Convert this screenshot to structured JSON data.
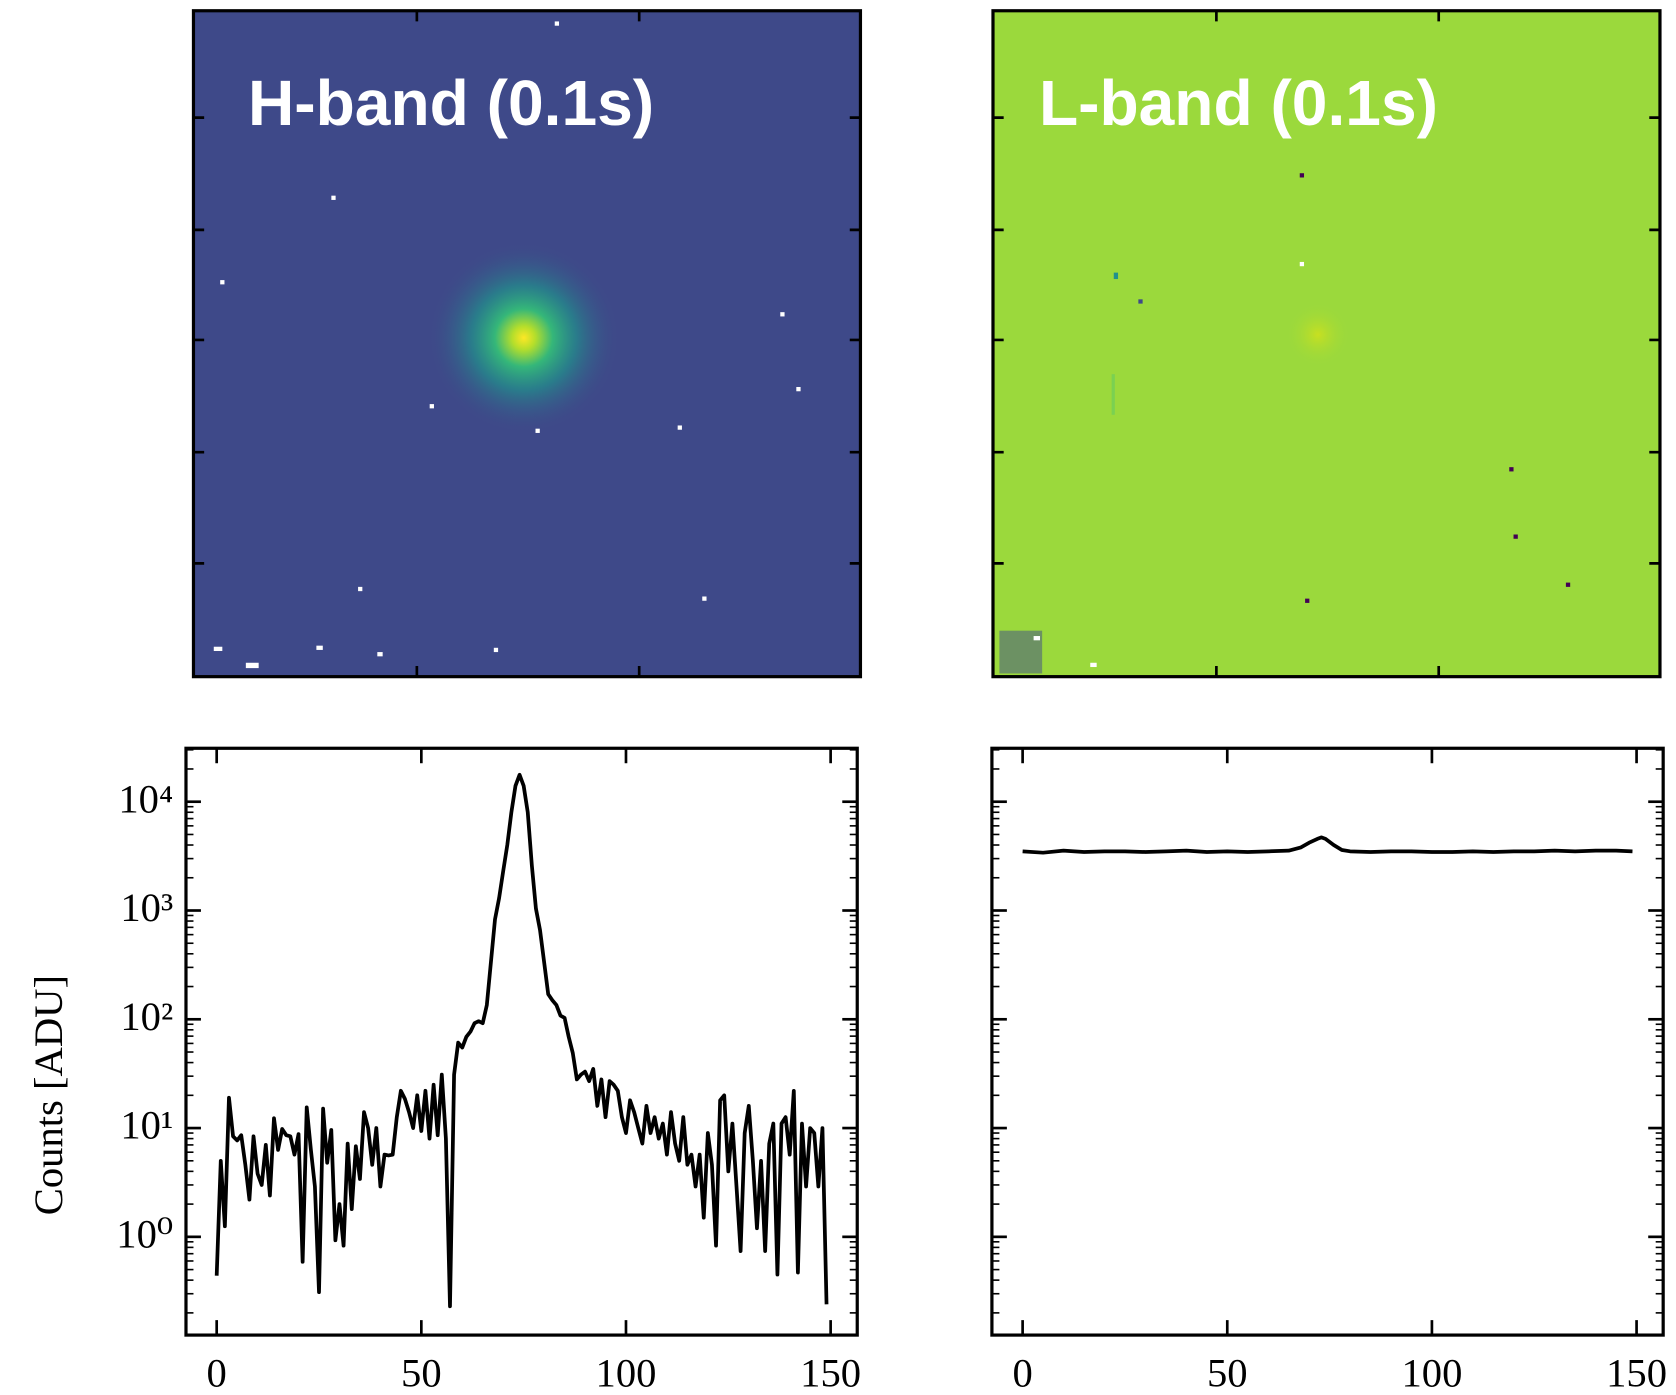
{
  "images": [
    {
      "label": "H-band (0.1s)"
    },
    {
      "label": "L-band (0.1s)"
    }
  ],
  "chart_data": [
    {
      "type": "line",
      "ylabel": "Counts [ADU]",
      "log_y": true,
      "color": "#000000",
      "xlim": [
        -7.5,
        156.5
      ],
      "xticks": [
        0,
        50,
        100,
        150
      ],
      "ylim": [
        0.125,
        31000
      ],
      "yticks": [
        {
          "value": 1,
          "label": "10⁰"
        },
        {
          "value": 10,
          "label": "10¹"
        },
        {
          "value": 100,
          "label": "10²"
        },
        {
          "value": 1000,
          "label": "10³"
        },
        {
          "value": 10000,
          "label": "10⁴"
        }
      ],
      "x": [
        0,
        1,
        2,
        3,
        4,
        5,
        6,
        7,
        8,
        9,
        10,
        11,
        12,
        13,
        14,
        15,
        16,
        17,
        18,
        19,
        20,
        21,
        22,
        23,
        24,
        25,
        26,
        27,
        28,
        29,
        30,
        31,
        32,
        33,
        34,
        35,
        36,
        37,
        38,
        39,
        40,
        41,
        42,
        43,
        44,
        45,
        46,
        47,
        48,
        49,
        50,
        51,
        52,
        53,
        54,
        55,
        56,
        57,
        58,
        59,
        60,
        61,
        62,
        63,
        64,
        65,
        66,
        67,
        68,
        69,
        70,
        71,
        72,
        73,
        74,
        75,
        76,
        77,
        78,
        79,
        80,
        81,
        82,
        83,
        84,
        85,
        86,
        87,
        88,
        89,
        90,
        91,
        92,
        93,
        94,
        95,
        96,
        97,
        98,
        99,
        100,
        101,
        102,
        103,
        104,
        105,
        106,
        107,
        108,
        109,
        110,
        111,
        112,
        113,
        114,
        115,
        116,
        117,
        118,
        119,
        120,
        121,
        122,
        123,
        124,
        125,
        126,
        127,
        128,
        129,
        130,
        131,
        132,
        133,
        134,
        135,
        136,
        137,
        138,
        139,
        140,
        141,
        142,
        143,
        144,
        145,
        146,
        147,
        148,
        149
      ],
      "values": [
        0.44,
        5,
        1.25,
        19,
        8.4,
        7.7,
        8.6,
        4.6,
        2.2,
        8.4,
        3.8,
        3,
        7,
        2.4,
        12.3,
        6.3,
        9.8,
        8.6,
        8.4,
        5.7,
        8.8,
        0.59,
        15.5,
        6.4,
        2.9,
        0.31,
        15.1,
        4.8,
        9.6,
        0.93,
        2,
        0.83,
        7.2,
        1.8,
        6.8,
        3.4,
        14,
        10,
        4.6,
        10,
        2.9,
        5.7,
        5.6,
        5.7,
        12.6,
        22,
        18.5,
        14,
        10,
        20,
        9.4,
        22,
        8,
        25,
        8.6,
        31,
        8,
        0.23,
        31,
        61,
        55,
        69,
        77,
        92,
        96,
        92,
        135,
        335,
        830,
        1300,
        2300,
        4000,
        8000,
        14000,
        17700,
        14000,
        8000,
        2600,
        1040,
        660,
        335,
        170,
        150,
        135,
        108,
        103,
        69,
        49,
        28,
        31,
        33,
        27,
        35,
        16,
        28,
        12.6,
        27,
        25,
        22,
        12.6,
        9,
        18,
        14,
        10,
        7.2,
        16,
        9,
        12.6,
        8,
        11,
        5.7,
        14,
        7.2,
        5,
        12.6,
        4.6,
        5.7,
        2.9,
        5.7,
        1.5,
        9,
        4.6,
        0.83,
        18,
        20,
        4,
        11,
        2.9,
        0.74,
        9,
        16,
        5,
        1.2,
        5,
        0.74,
        7.2,
        11,
        0.45,
        11,
        12.6,
        5.7,
        22,
        0.47,
        11,
        2.9,
        10,
        9,
        2.9,
        10,
        0.24
      ]
    },
    {
      "type": "line",
      "log_y": true,
      "color": "#000000",
      "xlim": [
        -7.5,
        156.5
      ],
      "xticks": [
        0,
        50,
        100,
        150
      ],
      "ylim": [
        0.125,
        31000
      ],
      "yticks": [
        1,
        10,
        100,
        1000,
        10000
      ],
      "x": [
        0,
        5,
        10,
        15,
        20,
        25,
        30,
        35,
        40,
        45,
        50,
        55,
        60,
        65,
        68,
        70,
        72,
        73,
        74,
        76,
        78,
        80,
        85,
        90,
        95,
        100,
        105,
        110,
        115,
        120,
        125,
        130,
        135,
        140,
        145,
        149
      ],
      "values": [
        3500,
        3400,
        3550,
        3450,
        3500,
        3500,
        3450,
        3500,
        3550,
        3450,
        3500,
        3450,
        3500,
        3550,
        3800,
        4200,
        4550,
        4700,
        4550,
        4000,
        3600,
        3500,
        3450,
        3500,
        3500,
        3450,
        3450,
        3500,
        3450,
        3500,
        3500,
        3550,
        3500,
        3550,
        3550,
        3500
      ]
    }
  ]
}
